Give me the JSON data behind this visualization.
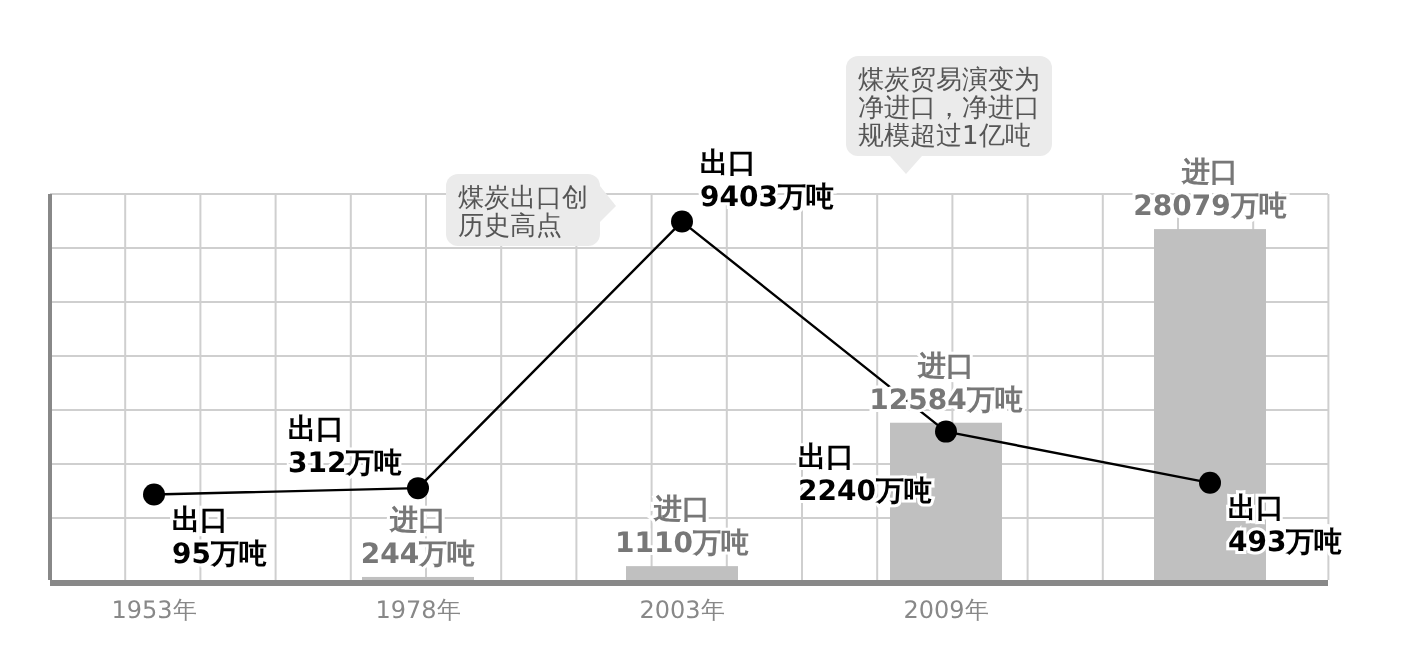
{
  "chart_data": {
    "type": "bar",
    "categories": [
      "1953年",
      "1978年",
      "2003年",
      "2009年",
      null
    ],
    "series": [
      {
        "name": "进口",
        "color": "#c0c0c0",
        "values": [
          null,
          244,
          1110,
          12584,
          28079
        ],
        "value_labels": [
          null,
          "244万吨",
          "1110万吨",
          "12584万吨",
          "28079万吨"
        ]
      },
      {
        "name": "出口",
        "type": "line",
        "axis": "y2",
        "color": "#000000",
        "values": [
          95,
          312,
          9403,
          2240,
          493
        ],
        "value_labels": [
          "95万吨",
          "312万吨",
          "9403万吨",
          "2240万吨",
          "493万吨"
        ],
        "marker": "circle"
      }
    ],
    "annotations": [
      "煤炭出口创历史高点",
      "煤炭贸易演变为净进口，净进口规模超过1亿吨"
    ],
    "grid": true,
    "legend": false,
    "tick_labels": "x"
  }
}
